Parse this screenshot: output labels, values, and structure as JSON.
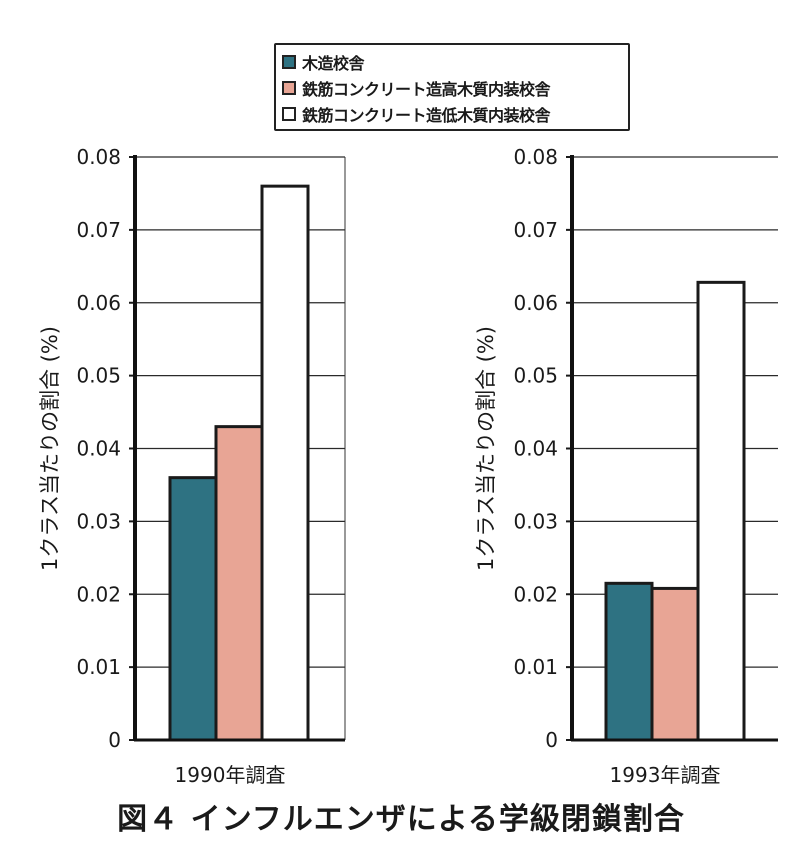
{
  "legend": {
    "items": [
      {
        "label": "木造校舎",
        "color": "#2e7282"
      },
      {
        "label": "鉄筋コンクリート造高木質内装校舎",
        "color": "#e8a595"
      },
      {
        "label": "鉄筋コンクリート造低木質内装校舎",
        "color": "#ffffff"
      }
    ]
  },
  "caption": "図４ インフルエンザによる学級閉鎖割合",
  "chart_data": [
    {
      "type": "bar",
      "xlabel": "1990年調査",
      "ylabel": "1クラス当たりの割合 (%)",
      "ylim": [
        0,
        0.08
      ],
      "yticks": [
        "0",
        "0.01",
        "0.02",
        "0.03",
        "0.04",
        "0.05",
        "0.06",
        "0.07",
        "0.08"
      ],
      "grid": true,
      "series": [
        {
          "name": "木造校舎",
          "values": [
            0.036
          ]
        },
        {
          "name": "鉄筋コンクリート造高木質内装校舎",
          "values": [
            0.043
          ]
        },
        {
          "name": "鉄筋コンクリート造低木質内装校舎",
          "values": [
            0.076
          ]
        }
      ]
    },
    {
      "type": "bar",
      "xlabel": "1993年調査",
      "ylabel": "1クラス当たりの割合 (%)",
      "ylim": [
        0,
        0.08
      ],
      "yticks": [
        "0",
        "0.01",
        "0.02",
        "0.03",
        "0.04",
        "0.05",
        "0.06",
        "0.07",
        "0.08"
      ],
      "grid": true,
      "series": [
        {
          "name": "木造校舎",
          "values": [
            0.0215
          ]
        },
        {
          "name": "鉄筋コンクリート造高木質内装校舎",
          "values": [
            0.0208
          ]
        },
        {
          "name": "鉄筋コンクリート造低木質内装校舎",
          "values": [
            0.0628
          ]
        }
      ]
    }
  ]
}
